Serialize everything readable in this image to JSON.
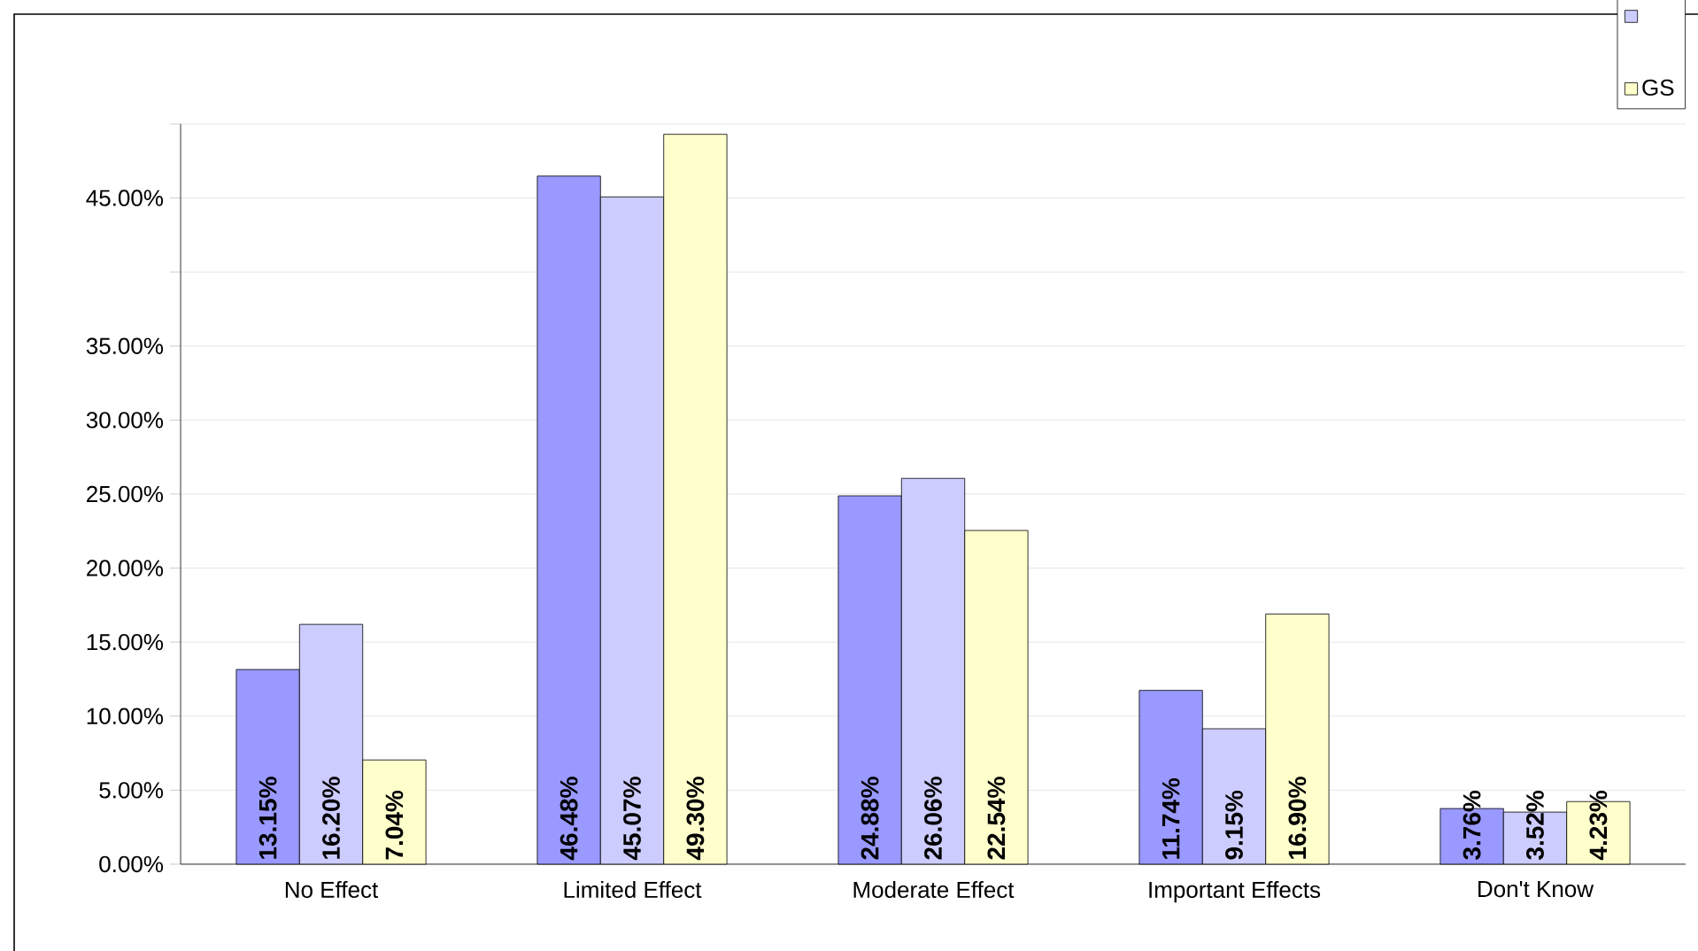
{
  "chart_data": {
    "type": "bar",
    "categories": [
      "No Effect",
      "Limited Effect",
      "Moderate Effect",
      "Important Effects",
      "Don't Know"
    ],
    "series": [
      {
        "name": null,
        "color": "#9999ff",
        "values": [
          13.15,
          46.48,
          24.88,
          11.74,
          3.76
        ],
        "value_labels": [
          "13.15%",
          "46.48%",
          "24.88%",
          "11.74%",
          "3.76%"
        ]
      },
      {
        "name": null,
        "color": "#ccccff",
        "values": [
          16.2,
          45.07,
          26.06,
          9.15,
          3.52
        ],
        "value_labels": [
          "16.20%",
          "45.07%",
          "26.06%",
          "9.15%",
          "3.52%"
        ]
      },
      {
        "name": "GS",
        "color": "#ffffcc",
        "values": [
          7.04,
          49.3,
          22.54,
          16.9,
          4.23
        ],
        "value_labels": [
          "7.04%",
          "49.30%",
          "22.54%",
          "16.90%",
          "4.23%"
        ]
      }
    ],
    "ylim": [
      0,
      50
    ],
    "yticks": [
      {
        "value": 0,
        "label": "0.00%"
      },
      {
        "value": 5,
        "label": "5.00%"
      },
      {
        "value": 10,
        "label": "10.00%"
      },
      {
        "value": 15,
        "label": "15.00%"
      },
      {
        "value": 20,
        "label": "20.00%"
      },
      {
        "value": 25,
        "label": "25.00%"
      },
      {
        "value": 30,
        "label": "30.00%"
      },
      {
        "value": 35,
        "label": "35.00%"
      },
      {
        "value": 40,
        "label": null
      },
      {
        "value": 45,
        "label": "45.00%"
      },
      {
        "value": 50,
        "label": null
      }
    ],
    "grid": "y",
    "legend": "top right"
  }
}
